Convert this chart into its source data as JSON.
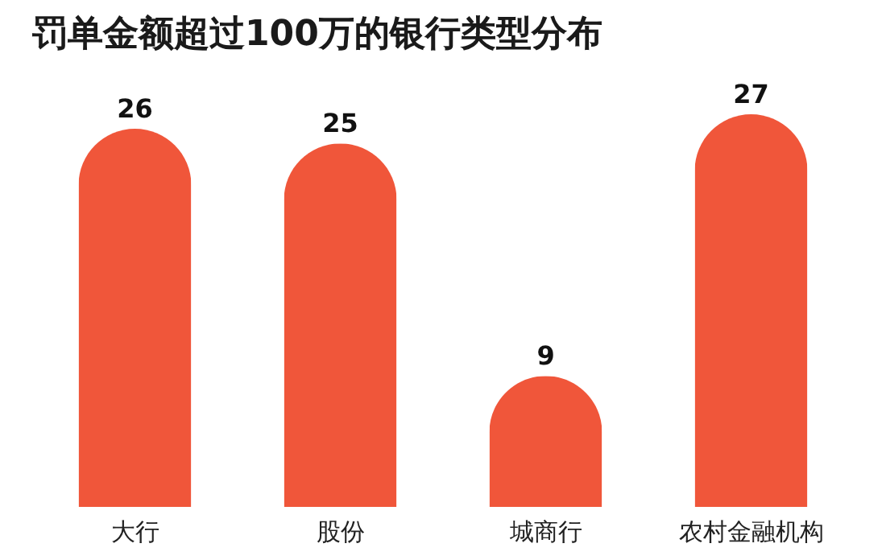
{
  "chart_data": {
    "type": "bar",
    "title": "罚单金额超过100万的银行类型分布",
    "categories": [
      "大行",
      "股份",
      "城商行",
      "农村金融机构"
    ],
    "values": [
      26,
      25,
      9,
      27
    ],
    "color": "#f0563a",
    "data_labels": true
  }
}
